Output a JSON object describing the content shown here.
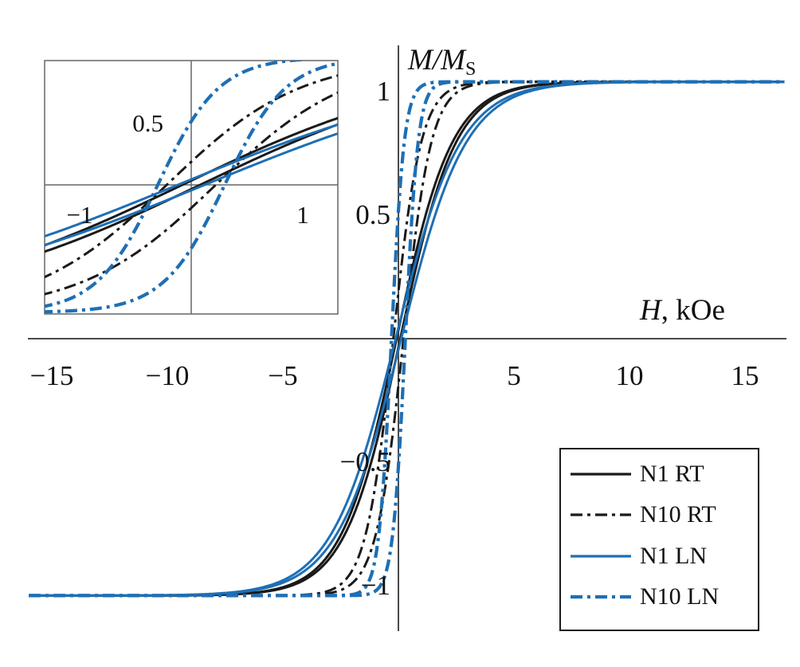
{
  "figure": {
    "background": "#ffffff",
    "axis_color": "#4a4a4a",
    "inset_line_color": "#666666",
    "text_color": "#111111",
    "black": "#1a1a1a",
    "blue": "#1e6fb5"
  },
  "axes": {
    "x_title": {
      "italic": "H",
      "rest": ", kOe"
    },
    "y_title": {
      "main": "M/M",
      "sub": "S"
    },
    "x_ticks": [
      {
        "value": -15,
        "label": "−15"
      },
      {
        "value": -10,
        "label": "−10"
      },
      {
        "value": -5,
        "label": "−5"
      },
      {
        "value": 5,
        "label": "5"
      },
      {
        "value": 10,
        "label": "10"
      },
      {
        "value": 15,
        "label": "15"
      }
    ],
    "y_ticks": [
      {
        "value": 1,
        "label": "1"
      },
      {
        "value": 0.5,
        "label": "0.5"
      },
      {
        "value": -0.5,
        "label": "−0.5"
      },
      {
        "value": -1,
        "label": "−1"
      }
    ]
  },
  "inset": {
    "x_ticks": [
      {
        "value": -1,
        "label": "−1"
      },
      {
        "value": 1,
        "label": "1"
      }
    ],
    "y_ticks": [
      {
        "value": 0.5,
        "label": "0.5"
      }
    ]
  },
  "legend": {
    "items": [
      {
        "label": "N1 RT"
      },
      {
        "label": "N10 RT"
      },
      {
        "label": "N1 LN"
      },
      {
        "label": "N10 LN"
      }
    ]
  },
  "chart_data": {
    "type": "line",
    "xlabel": "H, kOe",
    "ylabel": "M/M_S",
    "xlim": [
      -16,
      16.7
    ],
    "ylim": [
      -1.2,
      1.2
    ],
    "grid": false,
    "legend_position": "lower right",
    "inset_xlim": [
      -1.35,
      1.35
    ],
    "inset_ylim": [
      -1.05,
      1.02
    ],
    "model": "Hysteresis loop branches: M(H) = S*tanh((H + b*Hc)/w); b = +1 descending branch (from +saturation), b = -1 ascending branch",
    "H_sample": [
      -16,
      -8,
      -4,
      -2,
      -1,
      -0.5,
      0,
      0.5,
      1,
      2,
      4,
      8,
      16
    ],
    "series": [
      {
        "name": "N1 RT",
        "color": "#1a1a1a",
        "style": "solid",
        "stroke_width": 3,
        "saturation": 1.04,
        "coercivity_kOe": 0.08,
        "width_kOe": 2.4,
        "remanence": 0.03,
        "M_descending": [
          -1.04,
          -1.04,
          -0.96,
          -0.69,
          -0.38,
          -0.18,
          0.03,
          0.25,
          0.44,
          0.73,
          0.97,
          1.04,
          1.04
        ]
      },
      {
        "name": "N10 RT",
        "color": "#1a1a1a",
        "style": "dash-dot",
        "stroke_width": 3,
        "saturation": 1.04,
        "coercivity_kOe": 0.22,
        "width_kOe": 1.2,
        "remanence": 0.19,
        "M_descending": [
          -1.04,
          -1.04,
          -1.04,
          -0.94,
          -0.59,
          -0.24,
          0.19,
          0.56,
          0.8,
          0.99,
          1.04,
          1.04,
          1.04
        ]
      },
      {
        "name": "N1 LN",
        "color": "#1e6fb5",
        "style": "solid",
        "stroke_width": 3,
        "saturation": 1.04,
        "coercivity_kOe": 0.12,
        "width_kOe": 2.8,
        "remanence": 0.04,
        "M_descending": [
          -1.04,
          -1.03,
          -0.92,
          -0.61,
          -0.32,
          -0.14,
          0.04,
          0.23,
          0.4,
          0.66,
          0.94,
          1.03,
          1.04
        ]
      },
      {
        "name": "N10 LN",
        "color": "#1e6fb5",
        "style": "dash-dot",
        "stroke_width": 4.2,
        "saturation": 1.04,
        "coercivity_kOe": 0.3,
        "width_kOe": 0.55,
        "remanence": 0.52,
        "M_descending": [
          -1.04,
          -1.04,
          -1.04,
          -1.04,
          -0.89,
          -0.36,
          0.52,
          0.93,
          1.02,
          1.04,
          1.04,
          1.04,
          1.04
        ]
      }
    ]
  }
}
